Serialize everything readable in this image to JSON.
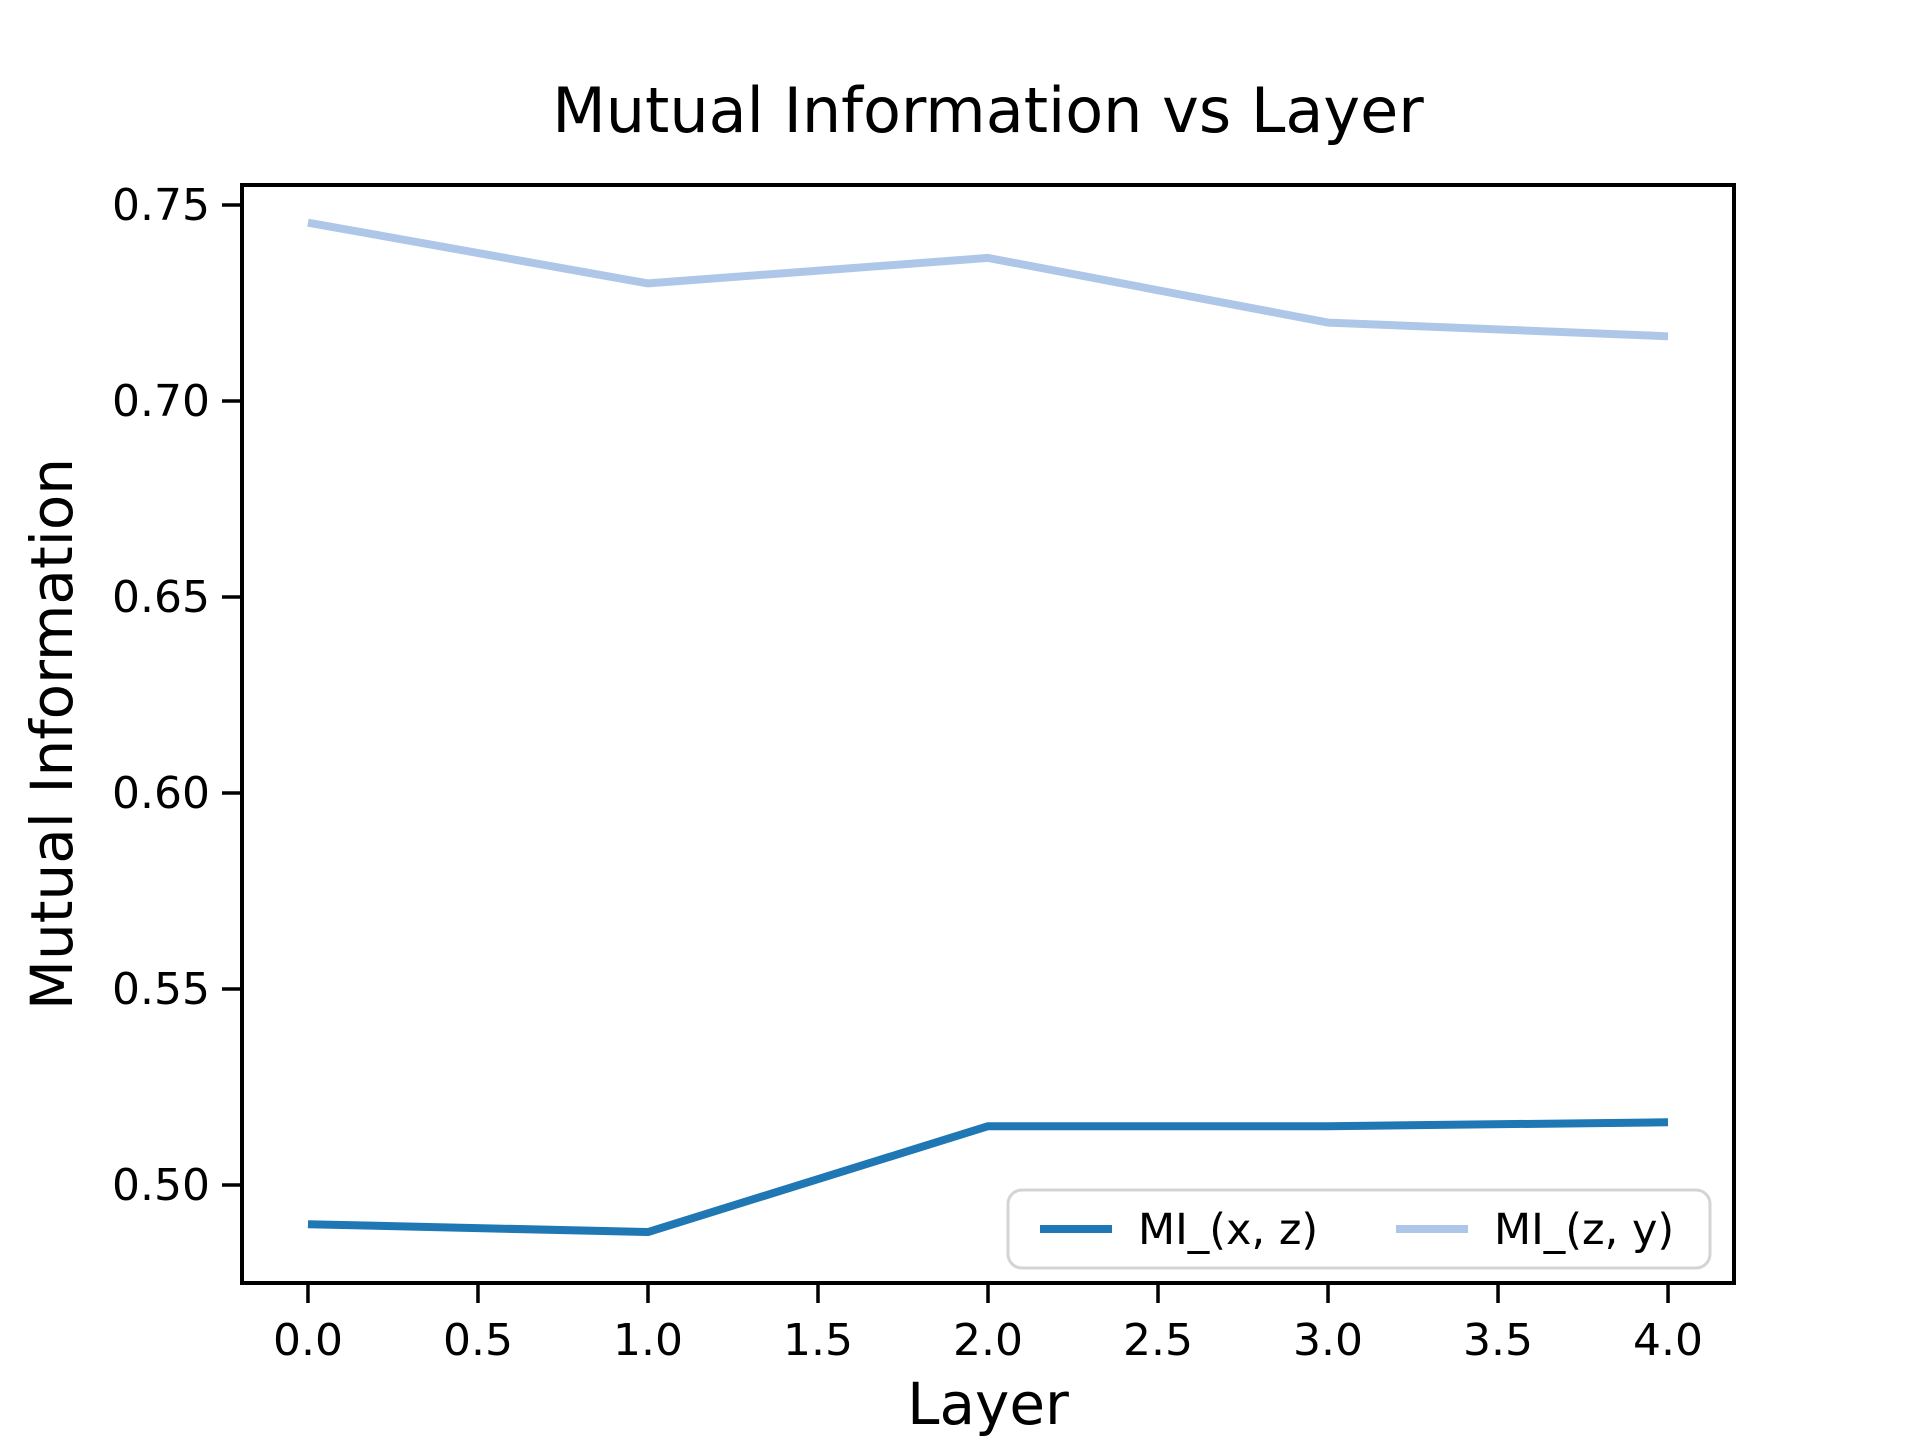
{
  "chart_data": {
    "type": "line",
    "title": "Mutual Information vs Layer",
    "xlabel": "Layer",
    "ylabel": "Mutual Information",
    "x": [
      0,
      1,
      2,
      3,
      4
    ],
    "series": [
      {
        "name": "MI_(x, z)",
        "color": "#1f77b4",
        "values": [
          0.49,
          0.488,
          0.515,
          0.515,
          0.516
        ]
      },
      {
        "name": "MI_(z, y)",
        "color": "#aec7e8",
        "values": [
          0.7455,
          0.73,
          0.7365,
          0.72,
          0.7165
        ]
      }
    ],
    "xticks": [
      0.0,
      0.5,
      1.0,
      1.5,
      2.0,
      2.5,
      3.0,
      3.5,
      4.0
    ],
    "yticks": [
      0.5,
      0.55,
      0.6,
      0.65,
      0.7,
      0.75
    ],
    "xlim": [
      -0.194,
      4.194
    ],
    "ylim": [
      0.475,
      0.7551
    ],
    "grid": false,
    "legend_position": "lower right",
    "line_width": 8,
    "background": "#ffffff",
    "spine_color": "#000000",
    "legend_border_color": "#d4d4d4"
  }
}
